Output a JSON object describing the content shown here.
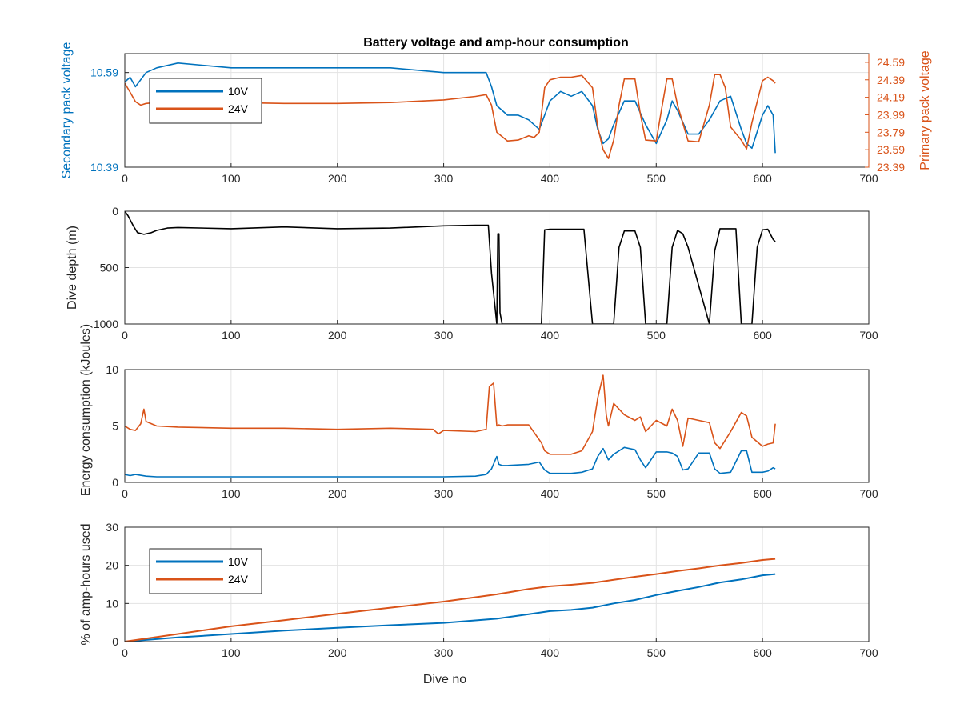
{
  "title": "Battery voltage and amp-hour consumption",
  "colors": {
    "s10": "#0072BD",
    "s24": "#D95319",
    "depth": "#000000",
    "grid": "#e3e3e3",
    "axis": "#262626"
  },
  "chart_data": [
    {
      "type": "line",
      "title": "Battery voltage and amp-hour consumption",
      "xlabel": "",
      "ylabel": "Secondary pack voltage",
      "ylabel_right": "Primary pack voltage",
      "xlim": [
        0,
        700
      ],
      "ylim": [
        10.39,
        10.63
      ],
      "ylim_right": [
        23.39,
        24.69
      ],
      "x_ticks": [
        "0",
        "100",
        "200",
        "300",
        "400",
        "500",
        "600",
        "700"
      ],
      "y_ticks": [
        "10.39",
        "10.59"
      ],
      "y_ticks_right": [
        "23.39",
        "23.59",
        "23.79",
        "23.99",
        "24.19",
        "24.39",
        "24.59"
      ],
      "grid": true,
      "legend": {
        "position": "top-left",
        "entries": [
          "10V",
          "24V"
        ]
      },
      "series": [
        {
          "name": "10V",
          "axis": "left",
          "x": [
            0,
            5,
            10,
            20,
            30,
            50,
            100,
            150,
            200,
            250,
            300,
            330,
            340,
            345,
            350,
            360,
            370,
            380,
            390,
            395,
            400,
            410,
            420,
            430,
            440,
            445,
            450,
            455,
            460,
            470,
            480,
            490,
            500,
            510,
            515,
            520,
            530,
            540,
            550,
            560,
            570,
            580,
            585,
            590,
            600,
            605,
            610,
            612
          ],
          "y": [
            10.57,
            10.58,
            10.56,
            10.59,
            10.6,
            10.61,
            10.6,
            10.6,
            10.6,
            10.6,
            10.59,
            10.59,
            10.59,
            10.56,
            10.52,
            10.5,
            10.5,
            10.49,
            10.47,
            10.5,
            10.53,
            10.55,
            10.54,
            10.55,
            10.52,
            10.47,
            10.44,
            10.45,
            10.48,
            10.53,
            10.53,
            10.48,
            10.44,
            10.49,
            10.53,
            10.51,
            10.46,
            10.46,
            10.49,
            10.53,
            10.54,
            10.47,
            10.44,
            10.43,
            10.5,
            10.52,
            10.5,
            10.42
          ]
        },
        {
          "name": "24V",
          "axis": "right",
          "x": [
            0,
            5,
            10,
            15,
            20,
            30,
            50,
            100,
            150,
            200,
            250,
            300,
            330,
            340,
            345,
            350,
            360,
            370,
            380,
            385,
            390,
            395,
            400,
            410,
            420,
            430,
            440,
            445,
            450,
            455,
            460,
            465,
            470,
            480,
            485,
            490,
            500,
            505,
            510,
            515,
            520,
            530,
            540,
            550,
            555,
            560,
            565,
            570,
            580,
            585,
            590,
            600,
            605,
            610,
            612
          ],
          "y": [
            24.35,
            24.25,
            24.14,
            24.1,
            24.12,
            24.13,
            24.13,
            24.13,
            24.12,
            24.12,
            24.13,
            24.16,
            24.2,
            24.22,
            24.1,
            23.79,
            23.69,
            23.7,
            23.75,
            23.73,
            23.79,
            24.3,
            24.39,
            24.42,
            24.42,
            24.44,
            24.3,
            23.85,
            23.59,
            23.49,
            23.7,
            24.1,
            24.4,
            24.4,
            24.0,
            23.7,
            23.69,
            24.05,
            24.4,
            24.4,
            24.1,
            23.69,
            23.68,
            24.1,
            24.45,
            24.45,
            24.3,
            23.85,
            23.7,
            23.6,
            23.9,
            24.38,
            24.42,
            24.38,
            24.35
          ]
        }
      ]
    },
    {
      "type": "line",
      "xlabel": "",
      "ylabel": "Dive depth (m)",
      "xlim": [
        0,
        700
      ],
      "ylim": [
        0,
        1000
      ],
      "y_reversed": true,
      "x_ticks": [
        "0",
        "100",
        "200",
        "300",
        "400",
        "500",
        "600",
        "700"
      ],
      "y_ticks": [
        "0",
        "500",
        "1000"
      ],
      "grid": true,
      "series": [
        {
          "name": "",
          "x": [
            0,
            3,
            8,
            12,
            18,
            25,
            30,
            40,
            50,
            100,
            150,
            200,
            250,
            300,
            330,
            342,
            345,
            350,
            351,
            352,
            353,
            355,
            360,
            380,
            392,
            395,
            400,
            420,
            425,
            432,
            440,
            460,
            465,
            470,
            480,
            485,
            490,
            510,
            515,
            520,
            525,
            530,
            550,
            555,
            560,
            575,
            580,
            590,
            595,
            600,
            605,
            610,
            612
          ],
          "y": [
            0,
            40,
            130,
            190,
            205,
            190,
            170,
            150,
            145,
            155,
            140,
            155,
            150,
            130,
            125,
            125,
            550,
            1000,
            200,
            200,
            900,
            1000,
            1000,
            1000,
            1000,
            165,
            160,
            160,
            160,
            160,
            1000,
            1000,
            320,
            175,
            175,
            320,
            1000,
            1000,
            320,
            170,
            200,
            320,
            1000,
            350,
            155,
            155,
            1000,
            1000,
            320,
            165,
            160,
            250,
            270
          ]
        }
      ]
    },
    {
      "type": "line",
      "xlabel": "",
      "ylabel": "Energy consumption (kJoules)",
      "xlim": [
        0,
        700
      ],
      "ylim": [
        0,
        10
      ],
      "x_ticks": [
        "0",
        "100",
        "200",
        "300",
        "400",
        "500",
        "600",
        "700"
      ],
      "y_ticks": [
        "0",
        "5",
        "10"
      ],
      "grid": true,
      "series": [
        {
          "name": "10V",
          "x": [
            0,
            5,
            10,
            20,
            30,
            50,
            100,
            150,
            200,
            250,
            300,
            330,
            340,
            345,
            350,
            352,
            355,
            360,
            380,
            390,
            395,
            400,
            420,
            430,
            440,
            445,
            450,
            455,
            460,
            470,
            480,
            485,
            490,
            500,
            510,
            515,
            520,
            525,
            530,
            540,
            550,
            555,
            560,
            570,
            580,
            585,
            590,
            600,
            605,
            610,
            612
          ],
          "y": [
            0.7,
            0.6,
            0.7,
            0.55,
            0.5,
            0.5,
            0.5,
            0.5,
            0.5,
            0.5,
            0.5,
            0.55,
            0.7,
            1.2,
            2.3,
            1.6,
            1.5,
            1.5,
            1.6,
            1.8,
            1.1,
            0.8,
            0.8,
            0.9,
            1.2,
            2.3,
            3.0,
            2.0,
            2.5,
            3.1,
            2.9,
            2.0,
            1.3,
            2.7,
            2.7,
            2.6,
            2.3,
            1.1,
            1.2,
            2.6,
            2.6,
            1.2,
            0.8,
            0.9,
            2.8,
            2.8,
            0.9,
            0.9,
            1.0,
            1.3,
            1.2
          ]
        },
        {
          "name": "24V",
          "x": [
            0,
            5,
            10,
            15,
            18,
            20,
            30,
            50,
            100,
            150,
            200,
            250,
            290,
            295,
            300,
            330,
            340,
            343,
            347,
            350,
            352,
            355,
            360,
            380,
            392,
            395,
            400,
            420,
            430,
            440,
            445,
            450,
            453,
            455,
            460,
            470,
            480,
            485,
            490,
            500,
            510,
            515,
            520,
            525,
            530,
            540,
            550,
            555,
            560,
            570,
            580,
            585,
            590,
            600,
            605,
            610,
            612
          ],
          "y": [
            5.0,
            4.7,
            4.6,
            5.2,
            6.5,
            5.4,
            5.0,
            4.9,
            4.8,
            4.8,
            4.7,
            4.8,
            4.7,
            4.3,
            4.6,
            4.5,
            4.7,
            8.5,
            8.8,
            5.0,
            5.1,
            5.0,
            5.1,
            5.1,
            3.5,
            2.8,
            2.5,
            2.5,
            2.8,
            4.5,
            7.5,
            9.5,
            6.0,
            5.0,
            7.0,
            6.0,
            5.5,
            5.8,
            4.5,
            5.5,
            5.0,
            6.5,
            5.5,
            3.2,
            5.7,
            5.5,
            5.3,
            3.5,
            3.0,
            4.5,
            6.2,
            5.9,
            4.0,
            3.2,
            3.4,
            3.5,
            5.2
          ]
        }
      ]
    },
    {
      "type": "line",
      "xlabel": "Dive no",
      "ylabel": "% of amp-hours used",
      "xlim": [
        0,
        700
      ],
      "ylim": [
        0,
        30
      ],
      "x_ticks": [
        "0",
        "100",
        "200",
        "300",
        "400",
        "500",
        "600",
        "700"
      ],
      "y_ticks": [
        "0",
        "10",
        "20",
        "30"
      ],
      "grid": true,
      "legend": {
        "position": "top-left",
        "entries": [
          "10V",
          "24V"
        ]
      },
      "series": [
        {
          "name": "10V",
          "x": [
            0,
            50,
            100,
            150,
            200,
            250,
            300,
            350,
            380,
            400,
            420,
            440,
            460,
            480,
            500,
            520,
            540,
            560,
            580,
            600,
            612
          ],
          "y": [
            0,
            1.1,
            2.0,
            2.9,
            3.6,
            4.3,
            4.9,
            6.0,
            7.2,
            8.0,
            8.3,
            8.9,
            10.0,
            10.9,
            12.2,
            13.3,
            14.3,
            15.5,
            16.3,
            17.4,
            17.7
          ]
        },
        {
          "name": "24V",
          "x": [
            0,
            50,
            100,
            150,
            200,
            250,
            300,
            350,
            380,
            400,
            420,
            440,
            460,
            480,
            500,
            520,
            540,
            560,
            580,
            600,
            612
          ],
          "y": [
            0,
            2.0,
            4.0,
            5.6,
            7.3,
            8.9,
            10.5,
            12.4,
            13.8,
            14.5,
            14.9,
            15.4,
            16.2,
            17.0,
            17.7,
            18.5,
            19.2,
            20.0,
            20.6,
            21.4,
            21.7
          ]
        }
      ]
    }
  ]
}
